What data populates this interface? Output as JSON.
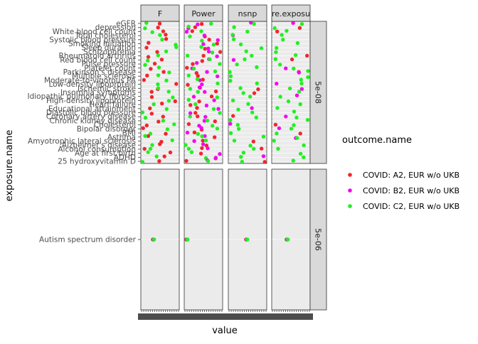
{
  "chart_data": {
    "type": "scatter",
    "xlabel": "value",
    "ylabel": "exposure.name",
    "facet_columns": [
      "F",
      "Power",
      "nsnp",
      "re.exposu"
    ],
    "facet_rows": [
      "5e-08",
      "5e-06"
    ],
    "legend_title": "outcome.name",
    "legend_position": "right",
    "grid": true,
    "series": [
      {
        "name": "COVID: A2, EUR w/o UKB",
        "color": "#f0262f"
      },
      {
        "name": "COVID: B2, EUR w/o UKB",
        "color": "#f507f0"
      },
      {
        "name": "COVID: C2, EUR w/o UKB",
        "color": "#21f021"
      }
    ],
    "rows": [
      {
        "label": "5e-08",
        "exposures": [
          "eGFR",
          "depression",
          "White blood cell count",
          "Total cholesterol",
          "Systolic blood pressure",
          "Smoking initiation",
          "Sleep duration",
          "Schizophrenia",
          "Rheumatoid arthritis",
          "Red blood cell count",
          "Pulse pressure",
          "Platelet count",
          "Parkinson's disease",
          "Multiple sclerosis",
          "Moderate-to-vigorous PA",
          "Low-density lipoprotein",
          "Ischemic stroke",
          "Insomnia symptoms",
          "Idiopathic pulmonary fibrosis",
          "High-density lipoprotein",
          "Heart failure",
          "Educational attainment",
          "Diastolic blood pressure",
          "Coronary artery disease",
          "Chronic kidney disease",
          "Cholesterol",
          "Bipolar disorder",
          "BMI",
          "Asthma",
          "Amyotrophic lateral sclerosis",
          "Alzheimer's disease",
          "Alcohol consumption",
          "Age at first birth",
          "ADHD",
          "25 hydroxyvitamin D"
        ]
      },
      {
        "label": "5e-06",
        "exposures": [
          "Autism spectrum disorder"
        ]
      }
    ]
  }
}
